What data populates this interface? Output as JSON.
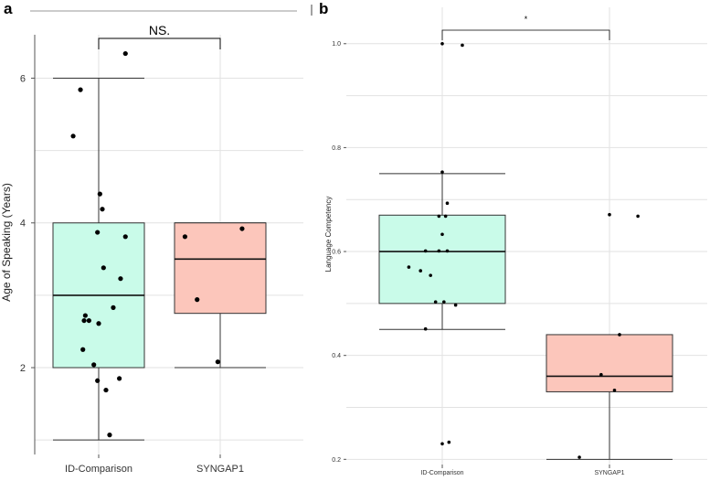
{
  "chart_data": [
    {
      "panel_label": "a",
      "type": "box",
      "ylabel": "Age of Speaking (Years)",
      "xlabel": "",
      "categories": [
        "ID-Comparison",
        "SYNGAP1"
      ],
      "ylim": [
        0.8,
        6.6
      ],
      "yticks": [
        2,
        4,
        6
      ],
      "grid": true,
      "boxes": [
        {
          "name": "ID-Comparison",
          "whisker_low": 1.0,
          "q1": 2.0,
          "median": 3.0,
          "q3": 4.0,
          "whisker_high": 6.0,
          "fill": "#c9fbe9"
        },
        {
          "name": "SYNGAP1",
          "whisker_low": 2.0,
          "q1": 2.75,
          "median": 3.5,
          "q3": 4.0,
          "whisker_high": 4.0,
          "fill": "#fcc6bb"
        }
      ],
      "points": [
        {
          "category": "ID-Comparison",
          "offset": 0.22,
          "y": 6.34
        },
        {
          "category": "ID-Comparison",
          "offset": -0.15,
          "y": 5.84
        },
        {
          "category": "ID-Comparison",
          "offset": -0.21,
          "y": 5.2
        },
        {
          "category": "ID-Comparison",
          "offset": 0.01,
          "y": 4.4
        },
        {
          "category": "ID-Comparison",
          "offset": 0.03,
          "y": 4.19
        },
        {
          "category": "ID-Comparison",
          "offset": -0.01,
          "y": 3.87
        },
        {
          "category": "ID-Comparison",
          "offset": 0.22,
          "y": 3.81
        },
        {
          "category": "ID-Comparison",
          "offset": 0.04,
          "y": 3.38
        },
        {
          "category": "ID-Comparison",
          "offset": 0.18,
          "y": 3.23
        },
        {
          "category": "ID-Comparison",
          "offset": 0.12,
          "y": 2.83
        },
        {
          "category": "ID-Comparison",
          "offset": -0.11,
          "y": 2.72
        },
        {
          "category": "ID-Comparison",
          "offset": -0.12,
          "y": 2.65
        },
        {
          "category": "ID-Comparison",
          "offset": -0.08,
          "y": 2.65
        },
        {
          "category": "ID-Comparison",
          "offset": 0.0,
          "y": 2.61
        },
        {
          "category": "ID-Comparison",
          "offset": -0.13,
          "y": 2.25
        },
        {
          "category": "ID-Comparison",
          "offset": -0.04,
          "y": 2.04
        },
        {
          "category": "ID-Comparison",
          "offset": 0.17,
          "y": 1.85
        },
        {
          "category": "ID-Comparison",
          "offset": -0.01,
          "y": 1.82
        },
        {
          "category": "ID-Comparison",
          "offset": 0.06,
          "y": 1.69
        },
        {
          "category": "ID-Comparison",
          "offset": 0.09,
          "y": 1.07
        },
        {
          "category": "SYNGAP1",
          "offset": 0.18,
          "y": 3.92
        },
        {
          "category": "SYNGAP1",
          "offset": -0.29,
          "y": 3.81
        },
        {
          "category": "SYNGAP1",
          "offset": -0.19,
          "y": 2.94
        },
        {
          "category": "SYNGAP1",
          "offset": -0.02,
          "y": 2.08
        }
      ],
      "annotation": {
        "label": "NS.",
        "y": 6.25
      }
    },
    {
      "panel_label": "b",
      "type": "box",
      "ylabel": "Language Competency",
      "xlabel": "",
      "categories": [
        "ID-Comparison",
        "SYNGAP1"
      ],
      "ylim": [
        0.19,
        1.07
      ],
      "yticks": [
        0.2,
        0.4,
        0.6,
        0.8,
        1.0
      ],
      "ytick_labels": [
        "0.2",
        "0.4",
        "0.6",
        "0.8",
        "1.0"
      ],
      "grid": true,
      "boxes": [
        {
          "name": "ID-Comparison",
          "whisker_low": 0.45,
          "q1": 0.5,
          "median": 0.6,
          "q3": 0.67,
          "whisker_high": 0.75,
          "fill": "#c9fbe9"
        },
        {
          "name": "SYNGAP1",
          "whisker_low": 0.2,
          "q1": 0.33,
          "median": 0.36,
          "q3": 0.44,
          "whisker_high": 0.44,
          "fill": "#fcc6bb"
        }
      ],
      "points": [
        {
          "category": "ID-Comparison",
          "offset": 0.0,
          "y": 1.0
        },
        {
          "category": "ID-Comparison",
          "offset": 0.12,
          "y": 0.997
        },
        {
          "category": "ID-Comparison",
          "offset": 0.0,
          "y": 0.753
        },
        {
          "category": "ID-Comparison",
          "offset": 0.03,
          "y": 0.693
        },
        {
          "category": "ID-Comparison",
          "offset": -0.02,
          "y": 0.668
        },
        {
          "category": "ID-Comparison",
          "offset": 0.02,
          "y": 0.668
        },
        {
          "category": "ID-Comparison",
          "offset": 0.0,
          "y": 0.633
        },
        {
          "category": "ID-Comparison",
          "offset": -0.1,
          "y": 0.601
        },
        {
          "category": "ID-Comparison",
          "offset": -0.02,
          "y": 0.601
        },
        {
          "category": "ID-Comparison",
          "offset": 0.03,
          "y": 0.601
        },
        {
          "category": "ID-Comparison",
          "offset": -0.2,
          "y": 0.57
        },
        {
          "category": "ID-Comparison",
          "offset": -0.13,
          "y": 0.563
        },
        {
          "category": "ID-Comparison",
          "offset": -0.07,
          "y": 0.554
        },
        {
          "category": "ID-Comparison",
          "offset": -0.04,
          "y": 0.503
        },
        {
          "category": "ID-Comparison",
          "offset": 0.01,
          "y": 0.503
        },
        {
          "category": "ID-Comparison",
          "offset": 0.08,
          "y": 0.497
        },
        {
          "category": "ID-Comparison",
          "offset": -0.1,
          "y": 0.451
        },
        {
          "category": "ID-Comparison",
          "offset": 0.0,
          "y": 0.23
        },
        {
          "category": "ID-Comparison",
          "offset": 0.04,
          "y": 0.233
        },
        {
          "category": "SYNGAP1",
          "offset": 0.0,
          "y": 0.671
        },
        {
          "category": "SYNGAP1",
          "offset": 0.17,
          "y": 0.668
        },
        {
          "category": "SYNGAP1",
          "offset": 0.06,
          "y": 0.44
        },
        {
          "category": "SYNGAP1",
          "offset": -0.05,
          "y": 0.363
        },
        {
          "category": "SYNGAP1",
          "offset": 0.03,
          "y": 0.333
        },
        {
          "category": "SYNGAP1",
          "offset": -0.18,
          "y": 0.204
        }
      ],
      "annotation": {
        "label": "*",
        "y": 1.04
      }
    }
  ]
}
